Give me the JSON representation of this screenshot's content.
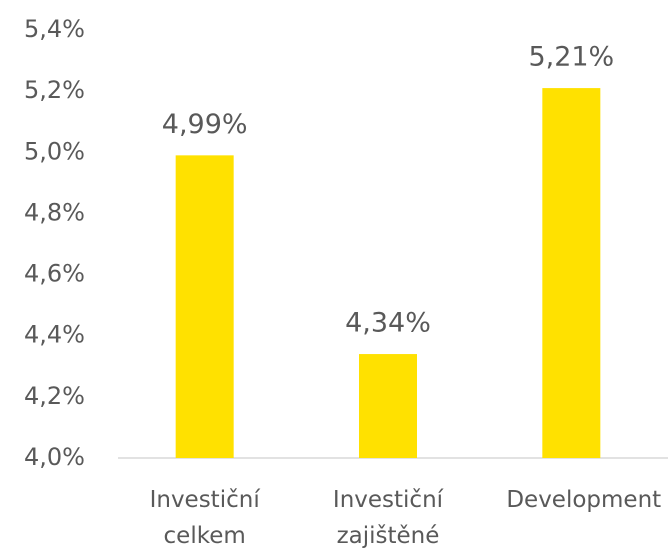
{
  "chart_data": {
    "type": "bar",
    "categories": [
      "Investiční celkem",
      "Investiční zajištěné",
      "Development"
    ],
    "values": [
      4.99,
      4.34,
      5.21
    ],
    "value_labels": [
      "4,99%",
      "4,34%",
      "5,21%"
    ],
    "color": "#FFE100",
    "ylim": [
      4.0,
      5.4
    ],
    "yticks": [
      {
        "value": 4.0,
        "label": "4,0%"
      },
      {
        "value": 4.2,
        "label": "4,2%"
      },
      {
        "value": 4.4,
        "label": "4,4%"
      },
      {
        "value": 4.6,
        "label": "4,6%"
      },
      {
        "value": 4.8,
        "label": "4,8%"
      },
      {
        "value": 5.0,
        "label": "5,0%"
      },
      {
        "value": 5.2,
        "label": "5,2%"
      },
      {
        "value": 5.4,
        "label": "5,4%"
      }
    ],
    "grid": false
  }
}
